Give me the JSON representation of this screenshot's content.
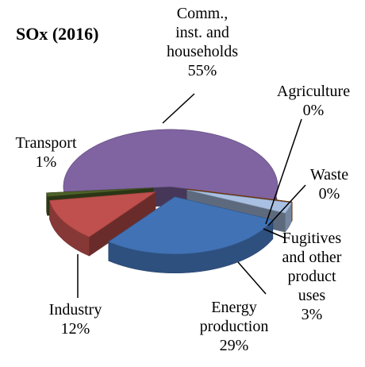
{
  "chart_data": {
    "type": "pie3d",
    "title": "SOx  (2016)",
    "categories": [
      "Comm., inst. and households",
      "Agriculture",
      "Waste",
      "Fugitives and other product uses",
      "Energy production",
      "Industry",
      "Transport"
    ],
    "values": [
      55,
      0,
      0,
      3,
      29,
      12,
      1
    ],
    "value_labels": [
      "55%",
      "0%",
      "0%",
      "3%",
      "29%",
      "12%",
      "1%"
    ],
    "colors": [
      "#8064a2",
      "#f79646",
      "#984807",
      "#a9c0e3",
      "#4172b5",
      "#c0504d",
      "#4f6228"
    ]
  }
}
